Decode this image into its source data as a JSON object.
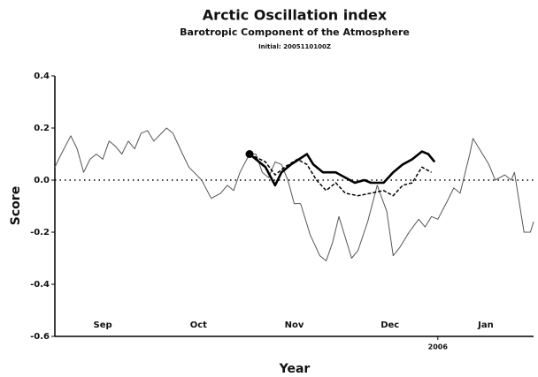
{
  "chart_data": {
    "type": "line",
    "title": "Arctic Oscillation index",
    "subtitle": "Barotropic Component of the Atmosphere",
    "annotation": "Initial: 2005110100Z",
    "ylabel": "Score",
    "xlabel": "Year",
    "xlim": [
      0,
      150
    ],
    "ylim": [
      -0.6,
      0.4
    ],
    "yticks": [
      {
        "value": 0.4,
        "label": "0.4"
      },
      {
        "value": 0.2,
        "label": "0.2"
      },
      {
        "value": 0,
        "label": "0.0"
      },
      {
        "value": -0.2,
        "label": "-0.2"
      },
      {
        "value": -0.4,
        "label": "-0.4"
      },
      {
        "value": -0.6,
        "label": "-0.6"
      }
    ],
    "xticks": [
      {
        "value": 15,
        "label": "Sep"
      },
      {
        "value": 45,
        "label": "Oct"
      },
      {
        "value": 75,
        "label": "Nov"
      },
      {
        "value": 105,
        "label": "Dec"
      },
      {
        "value": 135,
        "label": "Jan"
      }
    ],
    "year_tick": {
      "value": 120,
      "label": "2006"
    },
    "hline": 0,
    "series": [
      {
        "color": "#555555",
        "style": "thin",
        "x": [
          0,
          2,
          5,
          7,
          9,
          11,
          13,
          15,
          17,
          19,
          21,
          23,
          25,
          27,
          29,
          31,
          35,
          37,
          40,
          42,
          46,
          49,
          52,
          54,
          56,
          58,
          61,
          63,
          65,
          67,
          69,
          71,
          73,
          75,
          77,
          80,
          83,
          85,
          87,
          89,
          91,
          93,
          95,
          98,
          101,
          104,
          106,
          108,
          111,
          114,
          116,
          118,
          120,
          123,
          125,
          127,
          130,
          131,
          134,
          136,
          138,
          141,
          143,
          144,
          147,
          149,
          150
        ],
        "values": [
          0.05,
          0.1,
          0.17,
          0.12,
          0.03,
          0.08,
          0.1,
          0.08,
          0.15,
          0.13,
          0.1,
          0.15,
          0.12,
          0.18,
          0.19,
          0.15,
          0.2,
          0.18,
          0.1,
          0.05,
          0.0,
          -0.07,
          -0.05,
          -0.02,
          -0.04,
          0.03,
          0.1,
          0.1,
          0.03,
          0.01,
          0.07,
          0.06,
          0.0,
          -0.09,
          -0.09,
          -0.21,
          -0.29,
          -0.31,
          -0.24,
          -0.14,
          -0.22,
          -0.3,
          -0.27,
          -0.16,
          -0.02,
          -0.12,
          -0.29,
          -0.26,
          -0.2,
          -0.15,
          -0.18,
          -0.14,
          -0.15,
          -0.08,
          -0.03,
          -0.05,
          0.1,
          0.16,
          0.1,
          0.06,
          0.0,
          0.02,
          0.0,
          0.03,
          -0.2,
          -0.2,
          -0.16
        ]
      },
      {
        "color": "#000000",
        "style": "thick",
        "marker": true,
        "x": [
          61,
          66,
          69,
          71,
          74,
          79,
          81,
          84,
          88,
          91,
          94,
          97,
          99,
          103,
          106,
          109,
          112,
          115,
          117,
          119
        ],
        "values": [
          0.1,
          0.05,
          -0.02,
          0.03,
          0.06,
          0.1,
          0.06,
          0.03,
          0.03,
          0.01,
          -0.01,
          0.0,
          -0.01,
          -0.01,
          0.03,
          0.06,
          0.08,
          0.11,
          0.1,
          0.07
        ]
      },
      {
        "color": "#000000",
        "style": "dashed",
        "x": [
          61,
          66,
          69,
          72,
          76,
          79,
          82,
          85,
          88,
          91,
          95,
          99,
          103,
          106,
          109,
          112,
          115,
          118
        ],
        "values": [
          0.1,
          0.07,
          0.02,
          0.05,
          0.08,
          0.06,
          0.0,
          -0.04,
          -0.01,
          -0.05,
          -0.06,
          -0.05,
          -0.04,
          -0.06,
          -0.02,
          -0.01,
          0.05,
          0.03
        ]
      }
    ]
  }
}
